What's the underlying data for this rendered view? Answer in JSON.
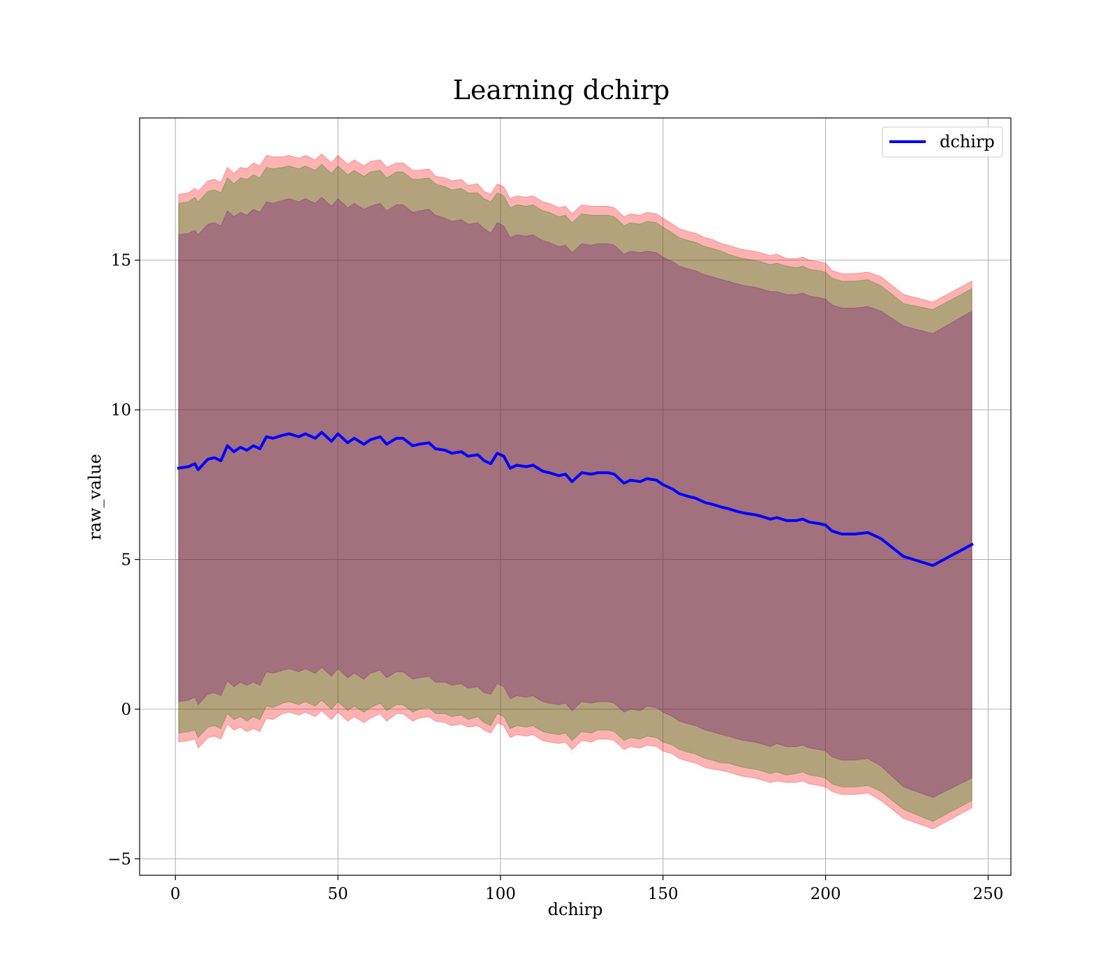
{
  "chart_data": {
    "type": "line",
    "title": "Learning dchirp",
    "xlabel": "dchirp",
    "ylabel": "raw_value",
    "xlim": [
      -11,
      257
    ],
    "ylim": [
      -5.55,
      19.75
    ],
    "x_ticks": [
      0,
      50,
      100,
      150,
      200,
      250
    ],
    "y_ticks": [
      -5,
      0,
      5,
      10,
      15
    ],
    "x_tick_labels": [
      "0",
      "50",
      "100",
      "150",
      "200",
      "250"
    ],
    "y_tick_labels": [
      "−5",
      "0",
      "5",
      "10",
      "15"
    ],
    "grid": true,
    "legend": {
      "placement": "upper right",
      "entries": [
        "dchirp"
      ]
    },
    "colors": {
      "line": "#0000ff",
      "band_outer": "#ff0000",
      "band_middle": "#008000",
      "band_inner": "#800080",
      "grid": "#b0b0b0"
    },
    "series": [
      {
        "name": "dchirp",
        "x": [
          1,
          4,
          6,
          7,
          10,
          12,
          14,
          16,
          18,
          20,
          22,
          24,
          26,
          28,
          30,
          33,
          35,
          38,
          40,
          43,
          45,
          48,
          50,
          53,
          55,
          58,
          60,
          63,
          65,
          68,
          70,
          73,
          75,
          78,
          80,
          83,
          85,
          88,
          90,
          93,
          95,
          97,
          99,
          101,
          103,
          105,
          108,
          110,
          113,
          115,
          118,
          120,
          122,
          125,
          128,
          130,
          133,
          135,
          138,
          140,
          143,
          145,
          148,
          150,
          153,
          155,
          158,
          160,
          163,
          165,
          168,
          170,
          173,
          175,
          178,
          180,
          183,
          185,
          188,
          191,
          193,
          195,
          198,
          200,
          202,
          205,
          209,
          213,
          217,
          224,
          233,
          245
        ],
        "y": [
          8.05,
          8.1,
          8.2,
          8.0,
          8.35,
          8.4,
          8.3,
          8.8,
          8.6,
          8.75,
          8.65,
          8.8,
          8.7,
          9.1,
          9.05,
          9.15,
          9.2,
          9.1,
          9.2,
          9.05,
          9.25,
          8.95,
          9.2,
          8.9,
          9.05,
          8.85,
          9.0,
          9.1,
          8.85,
          9.05,
          9.05,
          8.8,
          8.85,
          8.9,
          8.7,
          8.65,
          8.55,
          8.6,
          8.45,
          8.5,
          8.3,
          8.2,
          8.55,
          8.45,
          8.05,
          8.15,
          8.1,
          8.15,
          7.95,
          7.9,
          7.8,
          7.85,
          7.6,
          7.9,
          7.85,
          7.9,
          7.9,
          7.85,
          7.55,
          7.65,
          7.6,
          7.7,
          7.65,
          7.5,
          7.35,
          7.2,
          7.1,
          7.05,
          6.9,
          6.85,
          6.75,
          6.7,
          6.6,
          6.55,
          6.5,
          6.45,
          6.35,
          6.4,
          6.3,
          6.3,
          6.35,
          6.25,
          6.2,
          6.15,
          5.95,
          5.85,
          5.85,
          5.9,
          5.7,
          5.1,
          4.8,
          5.5
        ],
        "band_outer": [
          9.15,
          9.15,
          9.2,
          9.3,
          9.3,
          9.3,
          9.3,
          9.3,
          9.3,
          9.35,
          9.4,
          9.45,
          9.45,
          9.4,
          9.4,
          9.3,
          9.3,
          9.3,
          9.3,
          9.3,
          9.3,
          9.3,
          9.3,
          9.3,
          9.3,
          9.3,
          9.3,
          9.25,
          9.25,
          9.2,
          9.2,
          9.2,
          9.15,
          9.15,
          9.1,
          9.1,
          9.1,
          9.1,
          9.05,
          9.05,
          9.0,
          9.0,
          9.0,
          9.0,
          9.0,
          9.0,
          9.0,
          9.0,
          9.0,
          9.0,
          8.95,
          8.95,
          8.95,
          8.95,
          8.95,
          8.9,
          8.9,
          8.9,
          8.9,
          8.9,
          8.9,
          8.9,
          8.9,
          8.9,
          8.85,
          8.85,
          8.85,
          8.85,
          8.85,
          8.85,
          8.8,
          8.8,
          8.8,
          8.8,
          8.8,
          8.8,
          8.8,
          8.8,
          8.75,
          8.75,
          8.75,
          8.75,
          8.75,
          8.75,
          8.7,
          8.7,
          8.7,
          8.7,
          8.75,
          8.75,
          8.8,
          8.8
        ],
        "band_middle": [
          8.85,
          8.85,
          8.9,
          8.95,
          8.95,
          8.95,
          8.95,
          8.95,
          8.95,
          9.0,
          9.05,
          9.05,
          9.05,
          9.0,
          9.0,
          8.95,
          8.95,
          8.95,
          8.95,
          8.95,
          8.95,
          8.95,
          8.95,
          8.95,
          8.95,
          8.95,
          8.95,
          8.9,
          8.9,
          8.9,
          8.9,
          8.9,
          8.85,
          8.85,
          8.85,
          8.8,
          8.8,
          8.8,
          8.8,
          8.75,
          8.75,
          8.75,
          8.7,
          8.7,
          8.7,
          8.7,
          8.7,
          8.7,
          8.7,
          8.7,
          8.65,
          8.65,
          8.65,
          8.65,
          8.65,
          8.6,
          8.6,
          8.6,
          8.6,
          8.6,
          8.6,
          8.6,
          8.6,
          8.6,
          8.55,
          8.55,
          8.55,
          8.55,
          8.55,
          8.55,
          8.55,
          8.5,
          8.5,
          8.5,
          8.5,
          8.5,
          8.5,
          8.5,
          8.5,
          8.45,
          8.45,
          8.45,
          8.45,
          8.45,
          8.45,
          8.45,
          8.45,
          8.45,
          8.45,
          8.45,
          8.55,
          8.55
        ],
        "band_inner": [
          7.8,
          7.8,
          7.8,
          7.85,
          7.85,
          7.85,
          7.85,
          7.85,
          7.85,
          7.85,
          7.85,
          7.9,
          7.9,
          7.85,
          7.85,
          7.85,
          7.85,
          7.85,
          7.85,
          7.85,
          7.85,
          7.85,
          7.85,
          7.85,
          7.85,
          7.85,
          7.8,
          7.8,
          7.8,
          7.8,
          7.8,
          7.8,
          7.8,
          7.8,
          7.8,
          7.75,
          7.75,
          7.75,
          7.75,
          7.75,
          7.75,
          7.7,
          7.7,
          7.7,
          7.7,
          7.7,
          7.7,
          7.7,
          7.7,
          7.7,
          7.65,
          7.65,
          7.65,
          7.65,
          7.65,
          7.65,
          7.65,
          7.65,
          7.65,
          7.65,
          7.65,
          7.6,
          7.6,
          7.6,
          7.6,
          7.6,
          7.6,
          7.6,
          7.6,
          7.6,
          7.6,
          7.6,
          7.6,
          7.6,
          7.6,
          7.6,
          7.6,
          7.55,
          7.55,
          7.55,
          7.55,
          7.55,
          7.55,
          7.55,
          7.55,
          7.55,
          7.55,
          7.55,
          7.6,
          7.7,
          7.75,
          7.8
        ]
      }
    ]
  }
}
